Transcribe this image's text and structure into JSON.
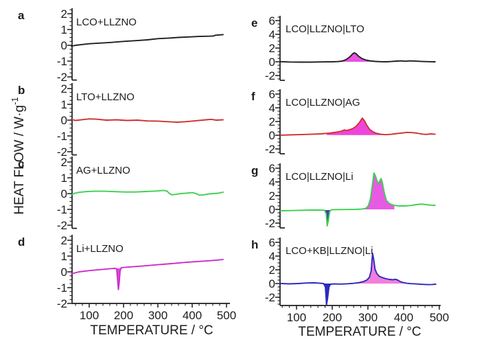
{
  "chart_data": {
    "type": "line",
    "xlabel": "TEMPERATURE / °C",
    "ylabel_main": "HEAT FLOW / W·g",
    "ylabel_sup": "-1",
    "x_ticks": [
      100,
      200,
      300,
      400,
      500
    ],
    "x_range": [
      50,
      500
    ],
    "grid": false,
    "legend": "none",
    "panels": [
      {
        "letter": "a",
        "label": "LCO+LLZNO",
        "column": "left",
        "row": 0,
        "color": "#1f1f1f",
        "ylim": [
          -2,
          2
        ],
        "yticks": [
          2,
          1,
          0,
          -1,
          -2
        ],
        "points": [
          [
            48,
            -0.05
          ],
          [
            60,
            0
          ],
          [
            80,
            0.05
          ],
          [
            100,
            0.1
          ],
          [
            130,
            0.14
          ],
          [
            160,
            0.18
          ],
          [
            200,
            0.25
          ],
          [
            240,
            0.3
          ],
          [
            270,
            0.35
          ],
          [
            300,
            0.42
          ],
          [
            330,
            0.45
          ],
          [
            360,
            0.5
          ],
          [
            390,
            0.53
          ],
          [
            420,
            0.56
          ],
          [
            450,
            0.58
          ],
          [
            462,
            0.59
          ],
          [
            468,
            0.64
          ],
          [
            490,
            0.68
          ]
        ],
        "fills": []
      },
      {
        "letter": "b",
        "label": "LTO+LLZNO",
        "column": "left",
        "row": 1,
        "color": "#cc3232",
        "ylim": [
          -2,
          2
        ],
        "yticks": [
          2,
          1,
          0,
          -1,
          -2
        ],
        "points": [
          [
            48,
            0.05
          ],
          [
            60,
            -0.02
          ],
          [
            80,
            0.03
          ],
          [
            100,
            0.08
          ],
          [
            120,
            0.06
          ],
          [
            150,
            0
          ],
          [
            180,
            0.02
          ],
          [
            210,
            -0.02
          ],
          [
            240,
            0
          ],
          [
            270,
            -0.05
          ],
          [
            300,
            -0.06
          ],
          [
            330,
            -0.1
          ],
          [
            355,
            -0.13
          ],
          [
            380,
            -0.1
          ],
          [
            410,
            -0.04
          ],
          [
            440,
            0.02
          ],
          [
            455,
            0.05
          ],
          [
            470,
            0
          ],
          [
            490,
            0.02
          ]
        ],
        "fills": []
      },
      {
        "letter": "c",
        "label": "AG+LLZNO",
        "column": "left",
        "row": 2,
        "color": "#3fd04f",
        "ylim": [
          -2,
          2
        ],
        "yticks": [
          2,
          1,
          0,
          -1,
          -2
        ],
        "points": [
          [
            48,
            -0.08
          ],
          [
            58,
            0.02
          ],
          [
            70,
            0.08
          ],
          [
            90,
            0.12
          ],
          [
            115,
            0.15
          ],
          [
            145,
            0.15
          ],
          [
            175,
            0.12
          ],
          [
            205,
            0.1
          ],
          [
            235,
            0.1
          ],
          [
            265,
            0.13
          ],
          [
            295,
            0.16
          ],
          [
            315,
            0.2
          ],
          [
            326,
            0.17
          ],
          [
            333,
            0.02
          ],
          [
            341,
            -0.08
          ],
          [
            353,
            -0.05
          ],
          [
            366,
            0
          ],
          [
            385,
            0.03
          ],
          [
            400,
            0.06
          ],
          [
            412,
            0
          ],
          [
            421,
            -0.1
          ],
          [
            433,
            -0.08
          ],
          [
            446,
            -0.03
          ],
          [
            460,
            0
          ],
          [
            475,
            0.02
          ],
          [
            490,
            0.09
          ]
        ],
        "fills": []
      },
      {
        "letter": "d",
        "label": "Li+LLZNO",
        "column": "left",
        "row": 3,
        "color": "#cc2ccc",
        "ylim": [
          -2,
          2
        ],
        "yticks": [
          2,
          1,
          0,
          -1,
          -2
        ],
        "points": [
          [
            48,
            -0.12
          ],
          [
            70,
            0
          ],
          [
            100,
            0.08
          ],
          [
            130,
            0.14
          ],
          [
            160,
            0.2
          ],
          [
            176,
            0.22
          ],
          [
            180,
            0.18
          ],
          [
            183,
            -0.6
          ],
          [
            185,
            -1.12
          ],
          [
            187,
            -0.75
          ],
          [
            190,
            0.05
          ],
          [
            193,
            0.26
          ],
          [
            200,
            0.28
          ],
          [
            230,
            0.33
          ],
          [
            260,
            0.38
          ],
          [
            300,
            0.45
          ],
          [
            340,
            0.52
          ],
          [
            380,
            0.6
          ],
          [
            420,
            0.66
          ],
          [
            460,
            0.72
          ],
          [
            490,
            0.78
          ]
        ],
        "fills": [
          {
            "name": "endotherm-fill",
            "t0": 177,
            "t1": 194,
            "base": 0.22,
            "color": "#d84be0"
          }
        ]
      },
      {
        "letter": "e",
        "label": "LCO|LLZNO|LTO",
        "column": "right",
        "row": 0,
        "color": "#1f1f1f",
        "ylim": [
          -2,
          6
        ],
        "yticks": [
          6,
          4,
          2,
          0,
          -2
        ],
        "points": [
          [
            55,
            0.02
          ],
          [
            80,
            -0.03
          ],
          [
            110,
            -0.05
          ],
          [
            140,
            -0.05
          ],
          [
            170,
            -0.02
          ],
          [
            200,
            0
          ],
          [
            215,
            0.03
          ],
          [
            228,
            0.1
          ],
          [
            240,
            0.35
          ],
          [
            250,
            0.75
          ],
          [
            258,
            1.2
          ],
          [
            262,
            1.3
          ],
          [
            267,
            1.18
          ],
          [
            274,
            0.8
          ],
          [
            284,
            0.45
          ],
          [
            295,
            0.25
          ],
          [
            308,
            0.12
          ],
          [
            322,
            0.05
          ],
          [
            338,
            0.01
          ],
          [
            352,
            0
          ],
          [
            366,
            0.04
          ],
          [
            380,
            0.1
          ],
          [
            394,
            0.13
          ],
          [
            404,
            0.08
          ],
          [
            418,
            0.13
          ],
          [
            432,
            0.11
          ],
          [
            448,
            0.06
          ],
          [
            462,
            0.03
          ],
          [
            476,
            0.01
          ],
          [
            488,
            0
          ]
        ],
        "fills": [
          {
            "name": "exotherm-fill",
            "t0": 212,
            "t1": 340,
            "base": 0,
            "color": "#ea52e2"
          }
        ]
      },
      {
        "letter": "f",
        "label": "LCO|LLZNO|AG",
        "column": "right",
        "row": 1,
        "color": "#cc3232",
        "ylim": [
          -2,
          6
        ],
        "yticks": [
          6,
          4,
          2,
          0,
          -2
        ],
        "points": [
          [
            55,
            0.01
          ],
          [
            80,
            0.05
          ],
          [
            110,
            0.09
          ],
          [
            140,
            0.14
          ],
          [
            168,
            0.2
          ],
          [
            192,
            0.3
          ],
          [
            212,
            0.45
          ],
          [
            226,
            0.6
          ],
          [
            234,
            0.78
          ],
          [
            240,
            0.7
          ],
          [
            247,
            0.78
          ],
          [
            257,
            0.95
          ],
          [
            267,
            1.3
          ],
          [
            277,
            1.9
          ],
          [
            284,
            2.5
          ],
          [
            290,
            2.15
          ],
          [
            297,
            1.45
          ],
          [
            305,
            0.85
          ],
          [
            314,
            0.5
          ],
          [
            324,
            0.28
          ],
          [
            336,
            0.14
          ],
          [
            350,
            0.08
          ],
          [
            366,
            0.14
          ],
          [
            382,
            0.25
          ],
          [
            398,
            0.34
          ],
          [
            410,
            0.42
          ],
          [
            424,
            0.38
          ],
          [
            438,
            0.3
          ],
          [
            452,
            0.17
          ],
          [
            464,
            0.12
          ],
          [
            476,
            0.2
          ],
          [
            488,
            0.14
          ]
        ],
        "fills": [
          {
            "name": "exotherm-fill",
            "t0": 185,
            "t1": 350,
            "base": 0.02,
            "color": "#ee44da"
          }
        ]
      },
      {
        "letter": "g",
        "label": "LCO|LLZNO|Li",
        "column": "right",
        "row": 2,
        "color": "#3fd04f",
        "ylim": [
          -2,
          6
        ],
        "yticks": [
          6,
          4,
          2,
          0,
          -2
        ],
        "points": [
          [
            55,
            -0.2
          ],
          [
            80,
            -0.18
          ],
          [
            110,
            -0.13
          ],
          [
            140,
            -0.1
          ],
          [
            165,
            -0.1
          ],
          [
            178,
            -0.12
          ],
          [
            183,
            -0.6
          ],
          [
            186,
            -2.4
          ],
          [
            189,
            -1.7
          ],
          [
            193,
            -0.3
          ],
          [
            198,
            -0.05
          ],
          [
            215,
            -0.03
          ],
          [
            240,
            -0.02
          ],
          [
            265,
            0
          ],
          [
            282,
            0.04
          ],
          [
            293,
            0.12
          ],
          [
            301,
            0.5
          ],
          [
            307,
            1.5
          ],
          [
            312,
            3.3
          ],
          [
            317,
            5.3
          ],
          [
            321,
            4.9
          ],
          [
            326,
            4.1
          ],
          [
            330,
            3.8
          ],
          [
            334,
            4.2
          ],
          [
            337,
            4.5
          ],
          [
            341,
            3.8
          ],
          [
            346,
            2.4
          ],
          [
            352,
            1.3
          ],
          [
            360,
            0.85
          ],
          [
            372,
            0.6
          ],
          [
            388,
            0.5
          ],
          [
            404,
            0.5
          ],
          [
            420,
            0.57
          ],
          [
            436,
            0.7
          ],
          [
            450,
            0.78
          ],
          [
            462,
            0.7
          ],
          [
            475,
            0.62
          ],
          [
            488,
            0.6
          ]
        ],
        "fills": [
          {
            "name": "endotherm-fill",
            "t0": 180,
            "t1": 196,
            "base": -0.1,
            "color": "#4a34cc"
          },
          {
            "name": "exotherm-fill",
            "t0": 288,
            "t1": 374,
            "base": 0,
            "color": "#e85ae4"
          }
        ]
      },
      {
        "letter": "h",
        "label": "LCO+KB|LLZNO|Li",
        "column": "right",
        "row": 3,
        "color": "#2b28bd",
        "ylim": [
          -2,
          6
        ],
        "yticks": [
          6,
          4,
          2,
          0,
          -2
        ],
        "points": [
          [
            55,
            0.01
          ],
          [
            80,
            -0.05
          ],
          [
            105,
            0
          ],
          [
            130,
            0.08
          ],
          [
            150,
            0.1
          ],
          [
            166,
            0.04
          ],
          [
            176,
            0
          ],
          [
            181,
            -0.5
          ],
          [
            184,
            -3.1
          ],
          [
            187,
            -2.2
          ],
          [
            191,
            -0.5
          ],
          [
            195,
            -0.1
          ],
          [
            205,
            -0.06
          ],
          [
            225,
            -0.08
          ],
          [
            245,
            -0.03
          ],
          [
            260,
            0.03
          ],
          [
            274,
            0.12
          ],
          [
            287,
            0.28
          ],
          [
            297,
            0.5
          ],
          [
            304,
            0.9
          ],
          [
            309,
            1.8
          ],
          [
            313,
            4.4
          ],
          [
            316,
            3.6
          ],
          [
            320,
            2.1
          ],
          [
            325,
            1.45
          ],
          [
            332,
            1.05
          ],
          [
            341,
            0.85
          ],
          [
            351,
            0.7
          ],
          [
            361,
            0.6
          ],
          [
            370,
            0.55
          ],
          [
            377,
            0.62
          ],
          [
            383,
            0.52
          ],
          [
            390,
            0.3
          ],
          [
            398,
            0.15
          ],
          [
            408,
            0.04
          ],
          [
            420,
            -0.02
          ],
          [
            435,
            -0.06
          ],
          [
            452,
            -0.12
          ],
          [
            468,
            -0.16
          ],
          [
            480,
            -0.14
          ],
          [
            490,
            -0.1
          ]
        ],
        "fills": [
          {
            "name": "endotherm-fill",
            "t0": 177,
            "t1": 197,
            "base": 0,
            "color": "#2f2ac2"
          },
          {
            "name": "exotherm-fill",
            "t0": 258,
            "t1": 404,
            "base": -0.01,
            "color": "#f17fd9"
          }
        ]
      }
    ]
  }
}
